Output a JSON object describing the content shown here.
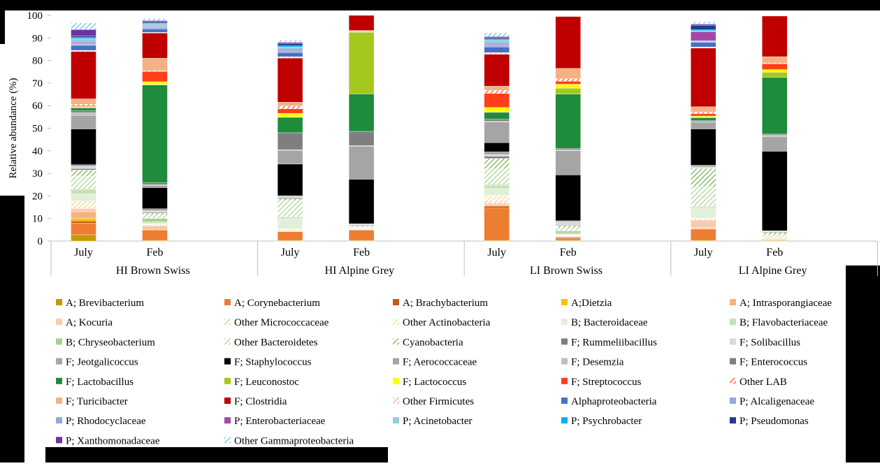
{
  "chart_data": {
    "type": "bar",
    "stacked": true,
    "title": "",
    "xlabel": "",
    "ylabel": "Relative abundance (%)",
    "ylim": [
      0,
      100
    ],
    "yticks": [
      0,
      10,
      20,
      30,
      40,
      50,
      60,
      70,
      80,
      90,
      100
    ],
    "legend_position": "bottom",
    "groups": [
      "HI Brown Swiss",
      "HI Alpine Grey",
      "LI Brown Swiss",
      "LI Alpine Grey"
    ],
    "bars": [
      {
        "label": "July",
        "group": "HI Brown Swiss"
      },
      {
        "label": "Feb",
        "group": "HI Brown Swiss"
      },
      {
        "label": "July",
        "group": "HI Alpine Grey"
      },
      {
        "label": "Feb",
        "group": "HI Alpine Grey"
      },
      {
        "label": "July",
        "group": "LI Brown Swiss"
      },
      {
        "label": "Feb",
        "group": "LI Brown Swiss"
      },
      {
        "label": "July",
        "group": "LI Alpine Grey"
      },
      {
        "label": "Feb",
        "group": "LI Alpine Grey"
      }
    ],
    "series": [
      {
        "name": "A; Brevibacterium",
        "color": "#c49a00",
        "pattern": "solid",
        "values": [
          2.8,
          0.3,
          0.3,
          0.3,
          0.3,
          0.3,
          0.3,
          0.3
        ]
      },
      {
        "name": "A; Corynebacterium",
        "color": "#ed7d31",
        "pattern": "solid",
        "values": [
          5.2,
          4.6,
          3.8,
          4.5,
          14.3,
          0.9,
          5.0,
          0.2
        ]
      },
      {
        "name": "A; Brachybacterium",
        "color": "#c55a11",
        "pattern": "solid",
        "values": [
          0.9,
          0.2,
          0.2,
          0.2,
          0.9,
          0.4,
          0.2,
          0.1
        ]
      },
      {
        "name": "A;Dietzia",
        "color": "#ffc000",
        "pattern": "solid",
        "values": [
          1.2,
          0.3,
          0.2,
          0.2,
          0.3,
          0.1,
          0.2,
          0.2
        ]
      },
      {
        "name": "A; Intrasporangiaceae",
        "color": "#f4b183",
        "pattern": "solid",
        "values": [
          2.9,
          0.8,
          0.2,
          0.1,
          0.4,
          0.3,
          0.3,
          0.3
        ]
      },
      {
        "name": "A; Kocuria",
        "color": "#f8cbad",
        "pattern": "solid",
        "values": [
          1.4,
          0.7,
          0.2,
          0.1,
          0.6,
          0.2,
          3.3,
          0.1
        ]
      },
      {
        "name": "Other Micrococcaceae",
        "color": "#f4b183",
        "pattern": "dash",
        "values": [
          0.7,
          0.3,
          0.3,
          0.1,
          1.3,
          0.2,
          0.6,
          0.1
        ]
      },
      {
        "name": "Other Actinobacteria",
        "color": "#ffd966",
        "pattern": "dash",
        "values": [
          2.6,
          0.2,
          0.2,
          0.1,
          2.2,
          0.2,
          0.3,
          0.3
        ]
      },
      {
        "name": "B; Bacteroidaceae",
        "color": "#e2efda",
        "pattern": "solid",
        "values": [
          3.2,
          0.6,
          4.5,
          0.3,
          3.0,
          0.4,
          4.6,
          0.3
        ]
      },
      {
        "name": "B; Flavobacteriaceae",
        "color": "#c5e0b4",
        "pattern": "solid",
        "values": [
          1.9,
          0.6,
          0.4,
          0.2,
          1.4,
          0.5,
          0.5,
          0.3
        ]
      },
      {
        "name": "B; Chryseobacterium",
        "color": "#a9d18e",
        "pattern": "solid",
        "values": [
          0.3,
          1.4,
          0.3,
          0.1,
          0.3,
          0.9,
          0.2,
          0.2
        ]
      },
      {
        "name": "Other Bacteroidetes",
        "color": "#a9d18e",
        "pattern": "dash",
        "values": [
          5.7,
          1.5,
          7.3,
          0.4,
          7.0,
          1.4,
          8.6,
          0.4
        ]
      },
      {
        "name": "Cyanobacteria",
        "color": "#70ad47",
        "pattern": "dash",
        "values": [
          2.7,
          0.9,
          0.8,
          0.3,
          4.6,
          1.0,
          8.0,
          1.0
        ]
      },
      {
        "name": "F; Rummeliibacillus",
        "color": "#7f7f7f",
        "pattern": "solid",
        "values": [
          0.6,
          0.4,
          0.4,
          0.3,
          1.0,
          0.3,
          0.2,
          0.3
        ]
      },
      {
        "name": "F; Solibacillus",
        "color": "#d9d9d9",
        "pattern": "solid",
        "values": [
          1.0,
          0.6,
          0.6,
          0.2,
          0.7,
          1.4,
          0.6,
          0.2
        ]
      },
      {
        "name": "F; Jeotgalicoccus",
        "color": "#a5a5a5",
        "pattern": "solid",
        "values": [
          0.7,
          0.9,
          0.4,
          0.3,
          1.2,
          0.5,
          0.7,
          0.3
        ]
      },
      {
        "name": "F; Staphylococcus",
        "color": "#000000",
        "pattern": "solid",
        "values": [
          15.9,
          9.4,
          14.0,
          19.7,
          4.1,
          20.3,
          16.1,
          35.2
        ]
      },
      {
        "name": "F; Aerococcaceae",
        "color": "#a5a5a5",
        "pattern": "solid",
        "values": [
          6.0,
          1.0,
          6.1,
          14.6,
          9.2,
          10.7,
          3.0,
          6.5
        ]
      },
      {
        "name": "F; Desemzia",
        "color": "#bfbfbf",
        "pattern": "solid",
        "values": [
          1.2,
          0.3,
          0.3,
          0.3,
          0.3,
          0.5,
          0.2,
          0.6
        ]
      },
      {
        "name": "F; Enterococcus",
        "color": "#7f7f7f",
        "pattern": "solid",
        "values": [
          0.9,
          0.8,
          7.5,
          6.3,
          1.0,
          0.6,
          0.5,
          0.5
        ]
      },
      {
        "name": "F; Lactobacillus",
        "color": "#1e8c3a",
        "pattern": "solid",
        "values": [
          1.2,
          43.3,
          6.8,
          16.6,
          2.9,
          24.0,
          1.2,
          25.1
        ]
      },
      {
        "name": "F; Leuconostoc",
        "color": "#a5c81e",
        "pattern": "solid",
        "values": [
          0.3,
          0.3,
          0.3,
          27.3,
          0.3,
          2.6,
          0.4,
          2.3
        ]
      },
      {
        "name": "F; Lactococcus",
        "color": "#ffff00",
        "pattern": "solid",
        "values": [
          0.3,
          1.2,
          1.5,
          0.2,
          1.9,
          1.8,
          0.4,
          1.2
        ]
      },
      {
        "name": "F; Streptococcus",
        "color": "#ff3f17",
        "pattern": "solid",
        "values": [
          0.4,
          4.6,
          2.0,
          0.2,
          6.2,
          1.3,
          1.0,
          2.6
        ]
      },
      {
        "name": "Other LAB",
        "color": "#ff3f17",
        "pattern": "dash",
        "values": [
          0.6,
          0.3,
          1.2,
          0.1,
          1.4,
          1.1,
          0.8,
          0.3
        ]
      },
      {
        "name": "F; Turicibacter",
        "color": "#f4b183",
        "pattern": "solid",
        "values": [
          2.4,
          5.5,
          1.7,
          0.3,
          1.8,
          4.6,
          2.3,
          2.8
        ]
      },
      {
        "name": "F; Clostridia",
        "color": "#c00000",
        "pattern": "solid",
        "values": [
          21.0,
          11.2,
          19.6,
          8.2,
          14.2,
          23.0,
          26.0,
          18.0
        ]
      },
      {
        "name": "Other Firmicutes",
        "color": "#ff99aa",
        "pattern": "dash",
        "values": [
          0.5,
          0.3,
          0.6,
          0.0,
          0.7,
          0.0,
          0.5,
          0.0
        ]
      },
      {
        "name": "Alphaproteobacteria",
        "color": "#4472c4",
        "pattern": "solid",
        "values": [
          2.2,
          1.5,
          1.8,
          0.0,
          2.5,
          0.0,
          2.0,
          0.0
        ]
      },
      {
        "name": "P; Alcaligenaceae",
        "color": "#8faadc",
        "pattern": "solid",
        "values": [
          0.6,
          0.5,
          0.7,
          0.0,
          0.7,
          0.0,
          0.5,
          0.0
        ]
      },
      {
        "name": "P; Rhodocyclaceae",
        "color": "#8ea9db",
        "pattern": "solid",
        "values": [
          0.4,
          0.3,
          0.4,
          0.0,
          0.4,
          0.0,
          0.3,
          0.0
        ]
      },
      {
        "name": "P; Enterobacteriaceae",
        "color": "#a349a4",
        "pattern": "solid",
        "values": [
          0.5,
          0.3,
          0.5,
          0.0,
          0.5,
          0.0,
          4.0,
          0.0
        ]
      },
      {
        "name": "P; Acinetobacter",
        "color": "#92cddc",
        "pattern": "solid",
        "values": [
          1.5,
          1.2,
          0.9,
          0.0,
          1.4,
          0.0,
          0.4,
          0.0
        ]
      },
      {
        "name": "P; Psychrobacter",
        "color": "#00b0f0",
        "pattern": "solid",
        "values": [
          0.5,
          0.4,
          0.5,
          0.0,
          0.5,
          0.0,
          0.4,
          0.0
        ]
      },
      {
        "name": "P; Pseudomonas",
        "color": "#1f3a93",
        "pattern": "solid",
        "values": [
          0.7,
          0.6,
          0.9,
          0.0,
          0.6,
          0.0,
          2.0,
          0.0
        ]
      },
      {
        "name": "P; Xanthomonadaceae",
        "color": "#7030a0",
        "pattern": "solid",
        "values": [
          2.8,
          0.4,
          0.6,
          0.0,
          0.5,
          0.0,
          0.5,
          0.0
        ]
      },
      {
        "name": "Other Gammaproteobacteria",
        "color": "#5bc0eb",
        "pattern": "dash",
        "values": [
          3.0,
          0.9,
          1.0,
          0.0,
          1.7,
          0.0,
          1.0,
          0.0
        ]
      }
    ]
  }
}
